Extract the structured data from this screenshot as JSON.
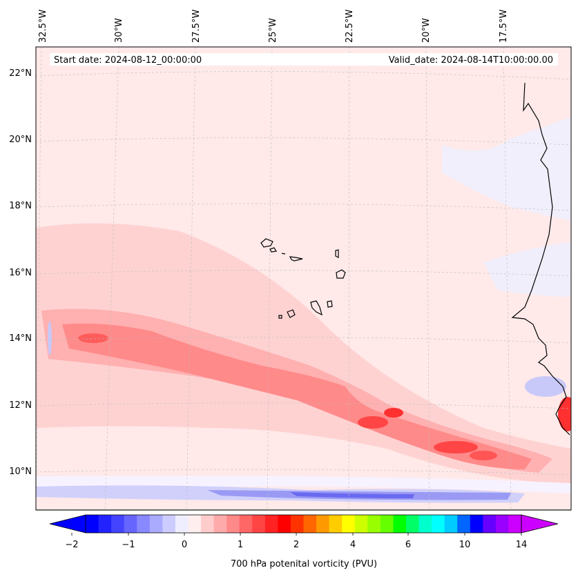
{
  "chart_data": {
    "type": "heatmap",
    "title": "700 hPa potenital vorticity (PVU)",
    "annotation_left": "Start date: 2024-08-12_00:00:00",
    "annotation_right": "Valid_date: 2024-08-14T10:00:00.00",
    "longitude_ticks": [
      "32.5°W",
      "30°W",
      "27.5°W",
      "25°W",
      "22.5°W",
      "20°W",
      "17.5°W"
    ],
    "latitude_ticks": [
      "22°N",
      "20°N",
      "18°N",
      "16°N",
      "14°N",
      "12°N",
      "10°N"
    ],
    "colorbar": {
      "label": "700 hPa potenital vorticity (PVU)",
      "tick_labels": [
        "−2",
        "−1",
        "0",
        "1",
        "2",
        "4",
        "6",
        "10",
        "14"
      ],
      "extend": "both",
      "colors": [
        "#0000ff",
        "#2222ff",
        "#4444ff",
        "#6666ff",
        "#8888ff",
        "#aaaaff",
        "#ccccff",
        "#eeeeff",
        "#ffeeee",
        "#ffcccc",
        "#ffaaaa",
        "#ff8888",
        "#ff6666",
        "#ff4444",
        "#ff2222",
        "#ff0000",
        "#ff3300",
        "#ff6600",
        "#ff9900",
        "#ffcc00",
        "#ffff00",
        "#ccff00",
        "#99ff00",
        "#66ff00",
        "#00ff00",
        "#00ff66",
        "#00ffcc",
        "#00ffff",
        "#00ccff",
        "#0066ff",
        "#0000ff",
        "#6600ff",
        "#9900ff",
        "#cc00ff"
      ]
    }
  }
}
